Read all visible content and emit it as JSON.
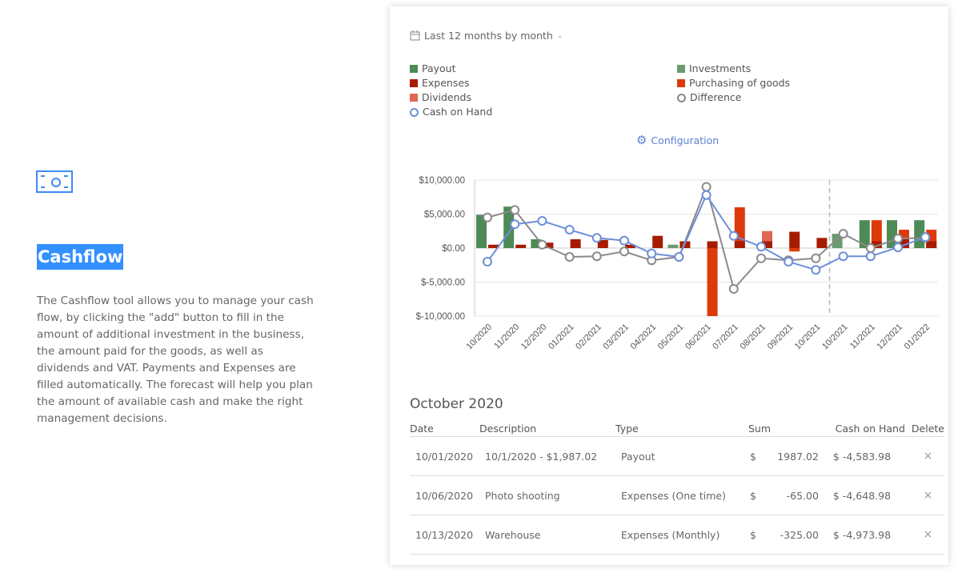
{
  "intro": {
    "title": "Cashflow",
    "description": "The Cashflow tool allows you to manage your cash flow, by clicking the \"add\" button to fill in the amount of additional investment in the business, the amount paid for the goods, as well as dividends and VAT. Payments and Expenses are filled automatically. The forecast will help you plan the amount of available cash and make the right management decisions."
  },
  "period_selector": {
    "label": "Last 12 months by month",
    "icon": "calendar-icon"
  },
  "legend": [
    {
      "label": "Payout",
      "color": "#4e8a56",
      "shape": "square"
    },
    {
      "label": "Expenses",
      "color": "#a61c00",
      "shape": "square"
    },
    {
      "label": "Dividends",
      "color": "#e06656",
      "shape": "square"
    },
    {
      "label": "Cash on Hand",
      "color": "#6d8fd9",
      "shape": "circle"
    },
    {
      "label": "Investments",
      "color": "#6a9a6e",
      "shape": "square"
    },
    {
      "label": "Purchasing of goods",
      "color": "#dd3a0c",
      "shape": "square"
    },
    {
      "label": "Difference",
      "color": "#888888",
      "shape": "circle"
    }
  ],
  "configuration_label": "Configuration",
  "chart_data": {
    "type": "bar+line",
    "categories": [
      "10/2020",
      "11/2020",
      "12/2020",
      "01/2021",
      "02/2021",
      "03/2021",
      "04/2021",
      "05/2021",
      "06/2021",
      "07/2021",
      "08/2021",
      "09/2021",
      "10/2021",
      "10/2021",
      "11/2021",
      "12/2021",
      "01/2022"
    ],
    "forecast_starts_at_index": 13,
    "ylim": [
      -10000,
      10000
    ],
    "yticks": [
      "$10,000.00",
      "$5,000.00",
      "$0.00",
      "$-5,000.00",
      "$-10,000.00"
    ],
    "ytick_values": [
      10000,
      5000,
      0,
      -5000,
      -10000
    ],
    "series": [
      {
        "name": "Payout",
        "values": [
          4900,
          6100,
          1300,
          0,
          0,
          0,
          0,
          0,
          0,
          0,
          0,
          0,
          0,
          0,
          4100,
          4100,
          4100
        ]
      },
      {
        "name": "Investments",
        "values": [
          0,
          0,
          0,
          0,
          0,
          0,
          0,
          500,
          0,
          0,
          0,
          0,
          0,
          2100,
          0,
          0,
          0
        ]
      },
      {
        "name": "Purchasing of goods",
        "values": [
          0,
          0,
          0,
          0,
          0,
          0,
          0,
          0,
          -10000,
          6000,
          0,
          -500,
          0,
          0,
          4100,
          2700,
          2700
        ]
      },
      {
        "name": "Expenses",
        "values": [
          500,
          500,
          800,
          1300,
          1200,
          500,
          1800,
          1000,
          1000,
          1000,
          1000,
          2400,
          1500,
          0,
          1000,
          1300,
          1000
        ]
      },
      {
        "name": "Dividends",
        "values": [
          0,
          0,
          0,
          0,
          0,
          0,
          0,
          0,
          0,
          0,
          1500,
          0,
          0,
          0,
          0,
          0,
          0
        ]
      },
      {
        "name": "Difference",
        "values": [
          4500,
          5600,
          500,
          -1300,
          -1200,
          -500,
          -1800,
          -1300,
          9000,
          -6000,
          -1500,
          -1800,
          -1500,
          2100,
          0,
          1400,
          1500
        ]
      },
      {
        "name": "Cash on Hand",
        "values": [
          -2000,
          3500,
          4000,
          2700,
          1500,
          1100,
          -800,
          -1300,
          7800,
          1800,
          200,
          -2000,
          -3200,
          -1200,
          -1200,
          100,
          1600
        ]
      }
    ]
  },
  "table": {
    "month_title": "October 2020",
    "headers": [
      "Date",
      "Description",
      "Type",
      "Sum",
      "Cash on Hand",
      "Delete"
    ],
    "rows": [
      {
        "date": "10/01/2020",
        "description": "10/1/2020 - $1,987.02",
        "type": "Payout",
        "currency": "$",
        "sum": "1987.02",
        "cash": "$ -4,583.98",
        "delete": "×"
      },
      {
        "date": "10/06/2020",
        "description": "Photo shooting",
        "type": "Expenses (One time)",
        "currency": "$",
        "sum": "-65.00",
        "cash": "$ -4,648.98",
        "delete": "×"
      },
      {
        "date": "10/13/2020",
        "description": "Warehouse",
        "type": "Expenses (Monthly)",
        "currency": "$",
        "sum": "-325.00",
        "cash": "$ -4,973.98",
        "delete": "×"
      }
    ]
  }
}
